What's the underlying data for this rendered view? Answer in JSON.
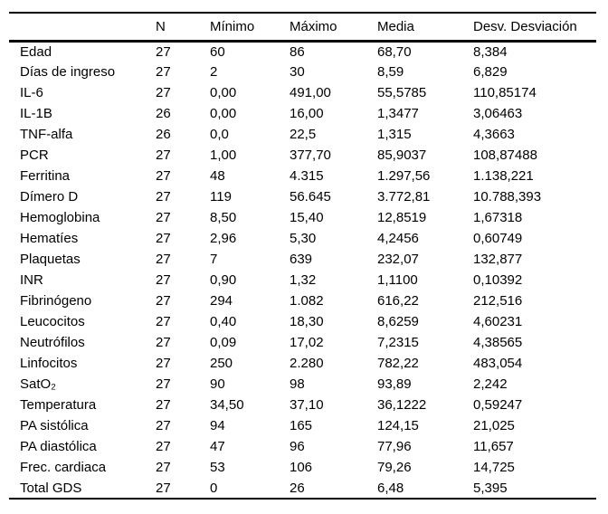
{
  "table": {
    "columns": [
      "",
      "N",
      "Mínimo",
      "Máximo",
      "Media",
      "Desv. Desviación"
    ],
    "rows": [
      [
        "Edad",
        "27",
        "60",
        "86",
        "68,70",
        "8,384"
      ],
      [
        "Días de ingreso",
        "27",
        "2",
        "30",
        "8,59",
        "6,829"
      ],
      [
        "IL-6",
        "27",
        "0,00",
        "491,00",
        "55,5785",
        "110,85174"
      ],
      [
        "IL-1B",
        "26",
        "0,00",
        "16,00",
        "1,3477",
        "3,06463"
      ],
      [
        "TNF-alfa",
        "26",
        "0,0",
        "22,5",
        "1,315",
        "4,3663"
      ],
      [
        "PCR",
        "27",
        "1,00",
        "377,70",
        "85,9037",
        "108,87488"
      ],
      [
        "Ferritina",
        "27",
        "48",
        "4.315",
        "1.297,56",
        "1.138,221"
      ],
      [
        "Dímero D",
        "27",
        "119",
        "56.645",
        "3.772,81",
        "10.788,393"
      ],
      [
        "Hemoglobina",
        "27",
        "8,50",
        "15,40",
        "12,8519",
        "1,67318"
      ],
      [
        "Hematíes",
        "27",
        "2,96",
        "5,30",
        "4,2456",
        "0,60749"
      ],
      [
        "Plaquetas",
        "27",
        "7",
        "639",
        "232,07",
        "132,877"
      ],
      [
        "INR",
        "27",
        "0,90",
        "1,32",
        "1,1100",
        "0,10392"
      ],
      [
        "Fibrinógeno",
        "27",
        "294",
        "1.082",
        "616,22",
        "212,516"
      ],
      [
        "Leucocitos",
        "27",
        "0,40",
        "18,30",
        "8,6259",
        "4,60231"
      ],
      [
        "Neutrófilos",
        "27",
        "0,09",
        "17,02",
        "7,2315",
        "4,38565"
      ],
      [
        "Linfocitos",
        "27",
        "250",
        "2.280",
        "782,22",
        "483,054"
      ],
      [
        "SatO₂",
        "27",
        "90",
        "98",
        "93,89",
        "2,242"
      ],
      [
        "Temperatura",
        "27",
        "34,50",
        "37,10",
        "36,1222",
        "0,59247"
      ],
      [
        "PA sistólica",
        "27",
        "94",
        "165",
        "124,15",
        "21,025"
      ],
      [
        "PA diastólica",
        "27",
        "47",
        "96",
        "77,96",
        "11,657"
      ],
      [
        "Frec. cardiaca",
        "27",
        "53",
        "106",
        "79,26",
        "14,725"
      ],
      [
        "Total GDS",
        "27",
        "0",
        "26",
        "6,48",
        "5,395"
      ]
    ]
  },
  "colors": {
    "text": "#000000",
    "background": "#ffffff",
    "border": "#000000"
  }
}
